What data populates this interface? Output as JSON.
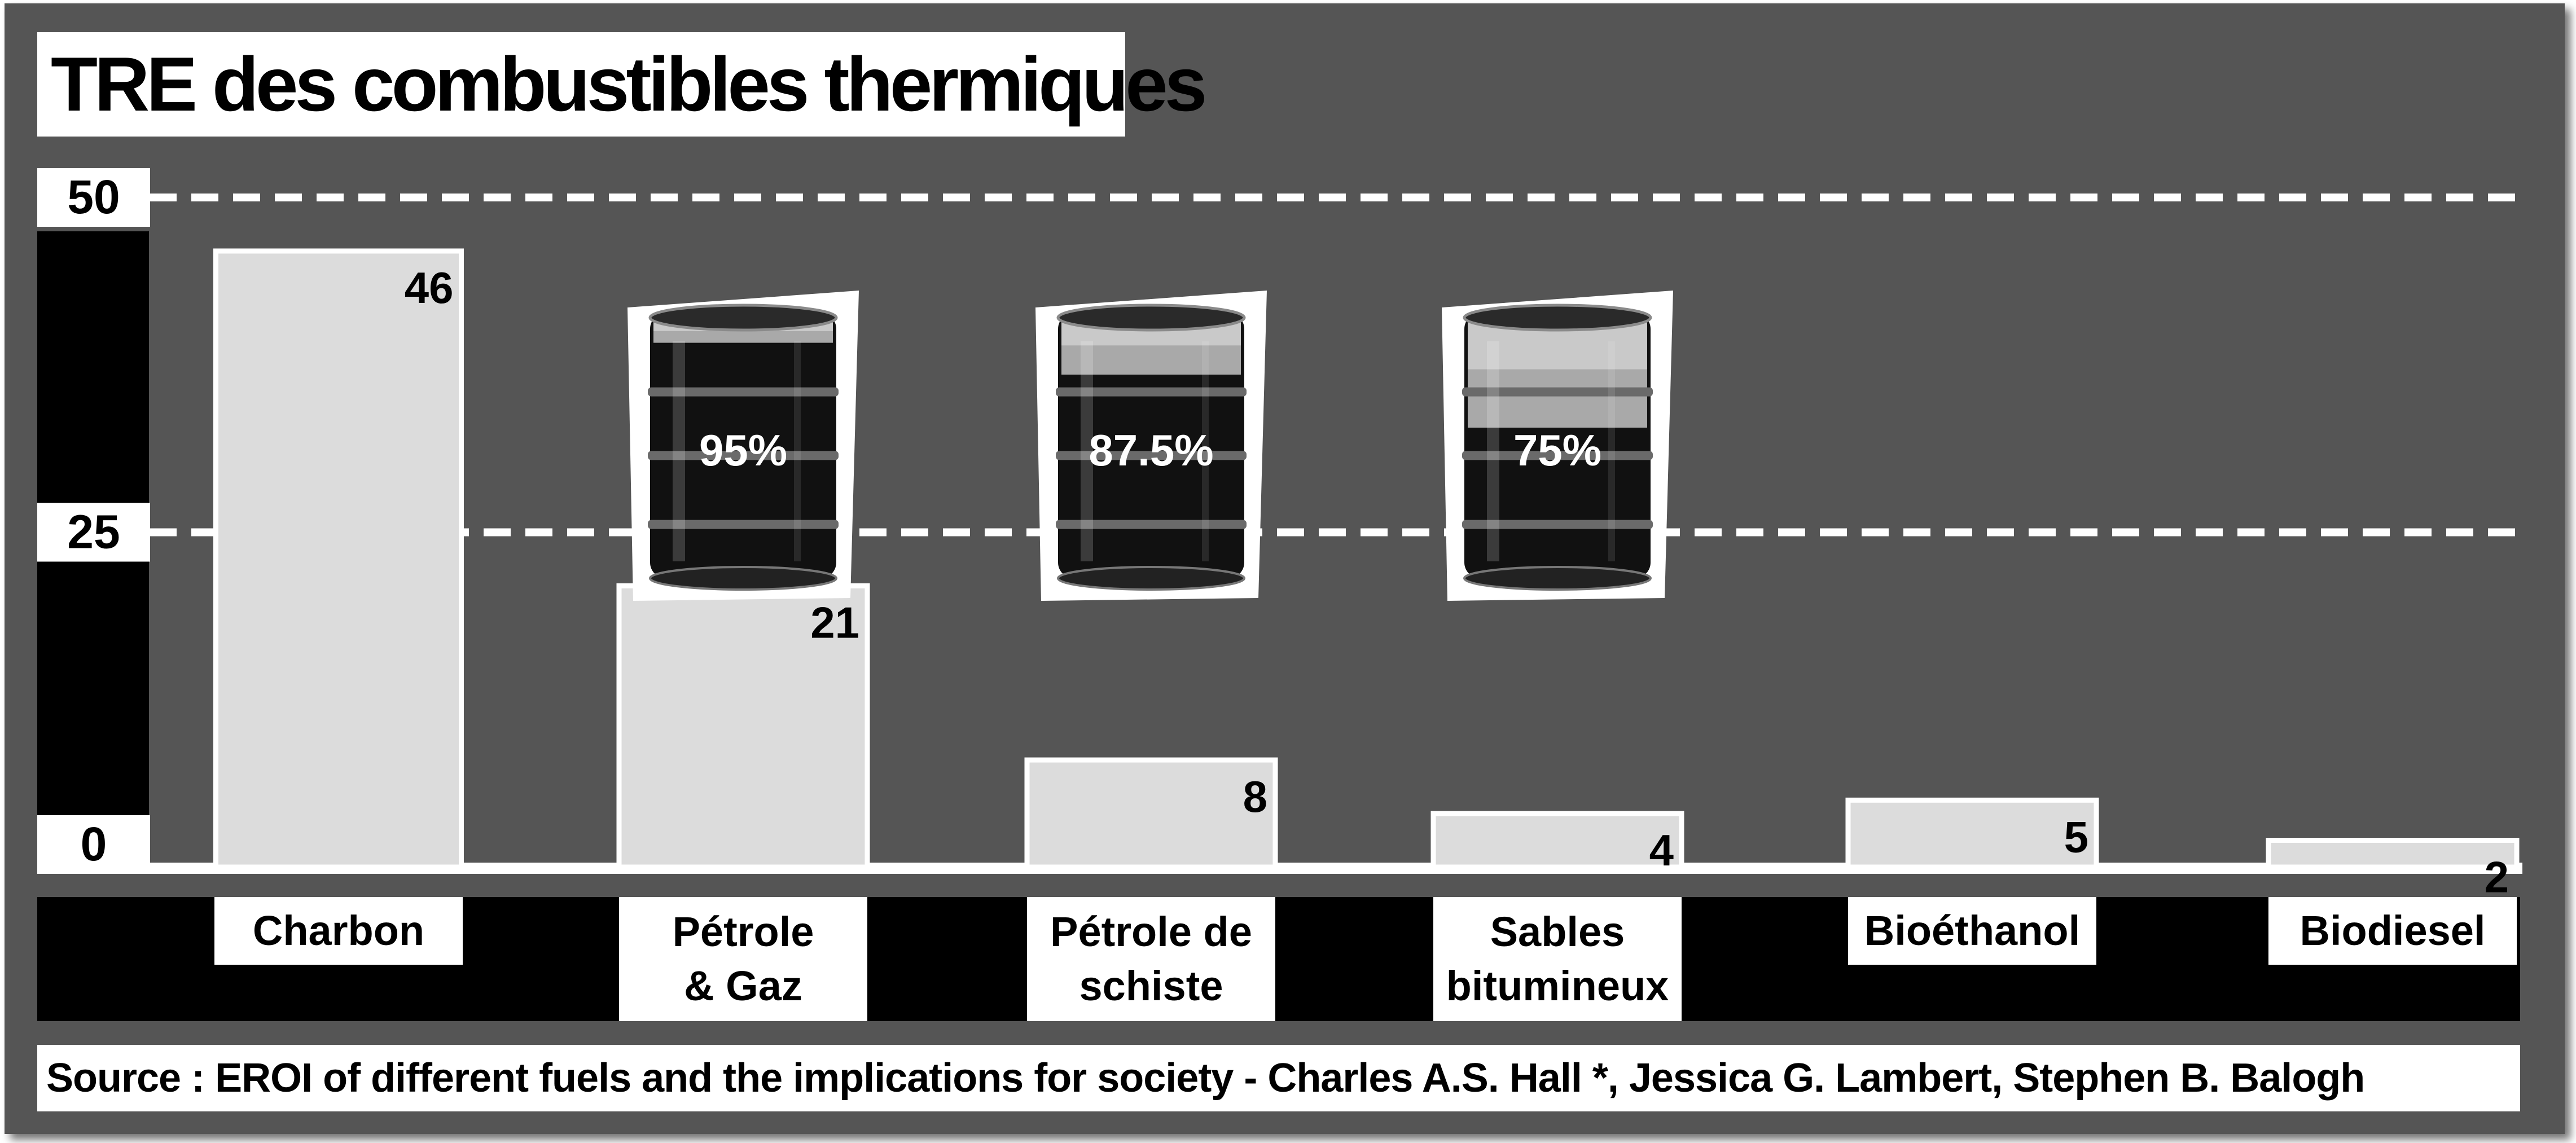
{
  "title": "TRE des combustibles thermiques",
  "source": "Source : EROI of different fuels and the implications for society - Charles A.S. Hall *, Jessica G. Lambert, Stephen B. Balogh",
  "colors": {
    "panel": "#555555",
    "bar_fill": "#dcdcdc",
    "bar_outline": "#ffffff",
    "axis_band": "#000000",
    "gridline": "#ffffff",
    "barrel_body": "#111111"
  },
  "chart_data": {
    "type": "bar",
    "title": "TRE des combustibles thermiques",
    "xlabel": "",
    "ylabel": "",
    "ylim": [
      0,
      50
    ],
    "yticks": [
      0,
      25,
      50
    ],
    "grid": "dashed horizontal lines at 25 and 50",
    "categories": [
      "Charbon",
      "Pétrole & Gaz",
      "Pétrole de schiste",
      "Sables bitumineux",
      "Bioéthanol",
      "Biodiesel"
    ],
    "category_lines": [
      [
        "Charbon"
      ],
      [
        "Pétrole",
        "& Gaz"
      ],
      [
        "Pétrole de",
        "schiste"
      ],
      [
        "Sables",
        "bitumineux"
      ],
      [
        "Bioéthanol"
      ],
      [
        "Biodiesel"
      ]
    ],
    "values": [
      46,
      21,
      8,
      4,
      5,
      2
    ],
    "value_labels": [
      "46",
      "21",
      "8",
      "4",
      "5",
      "2"
    ],
    "annotations": [
      {
        "category": "Pétrole & Gaz",
        "text": "95%",
        "fill_fraction": 0.95,
        "icon": "oil-barrel-icon"
      },
      {
        "category": "Pétrole de schiste",
        "text": "87.5%",
        "fill_fraction": 0.875,
        "icon": "oil-barrel-icon"
      },
      {
        "category": "Sables bitumineux",
        "text": "75%",
        "fill_fraction": 0.75,
        "icon": "oil-barrel-icon"
      }
    ]
  }
}
